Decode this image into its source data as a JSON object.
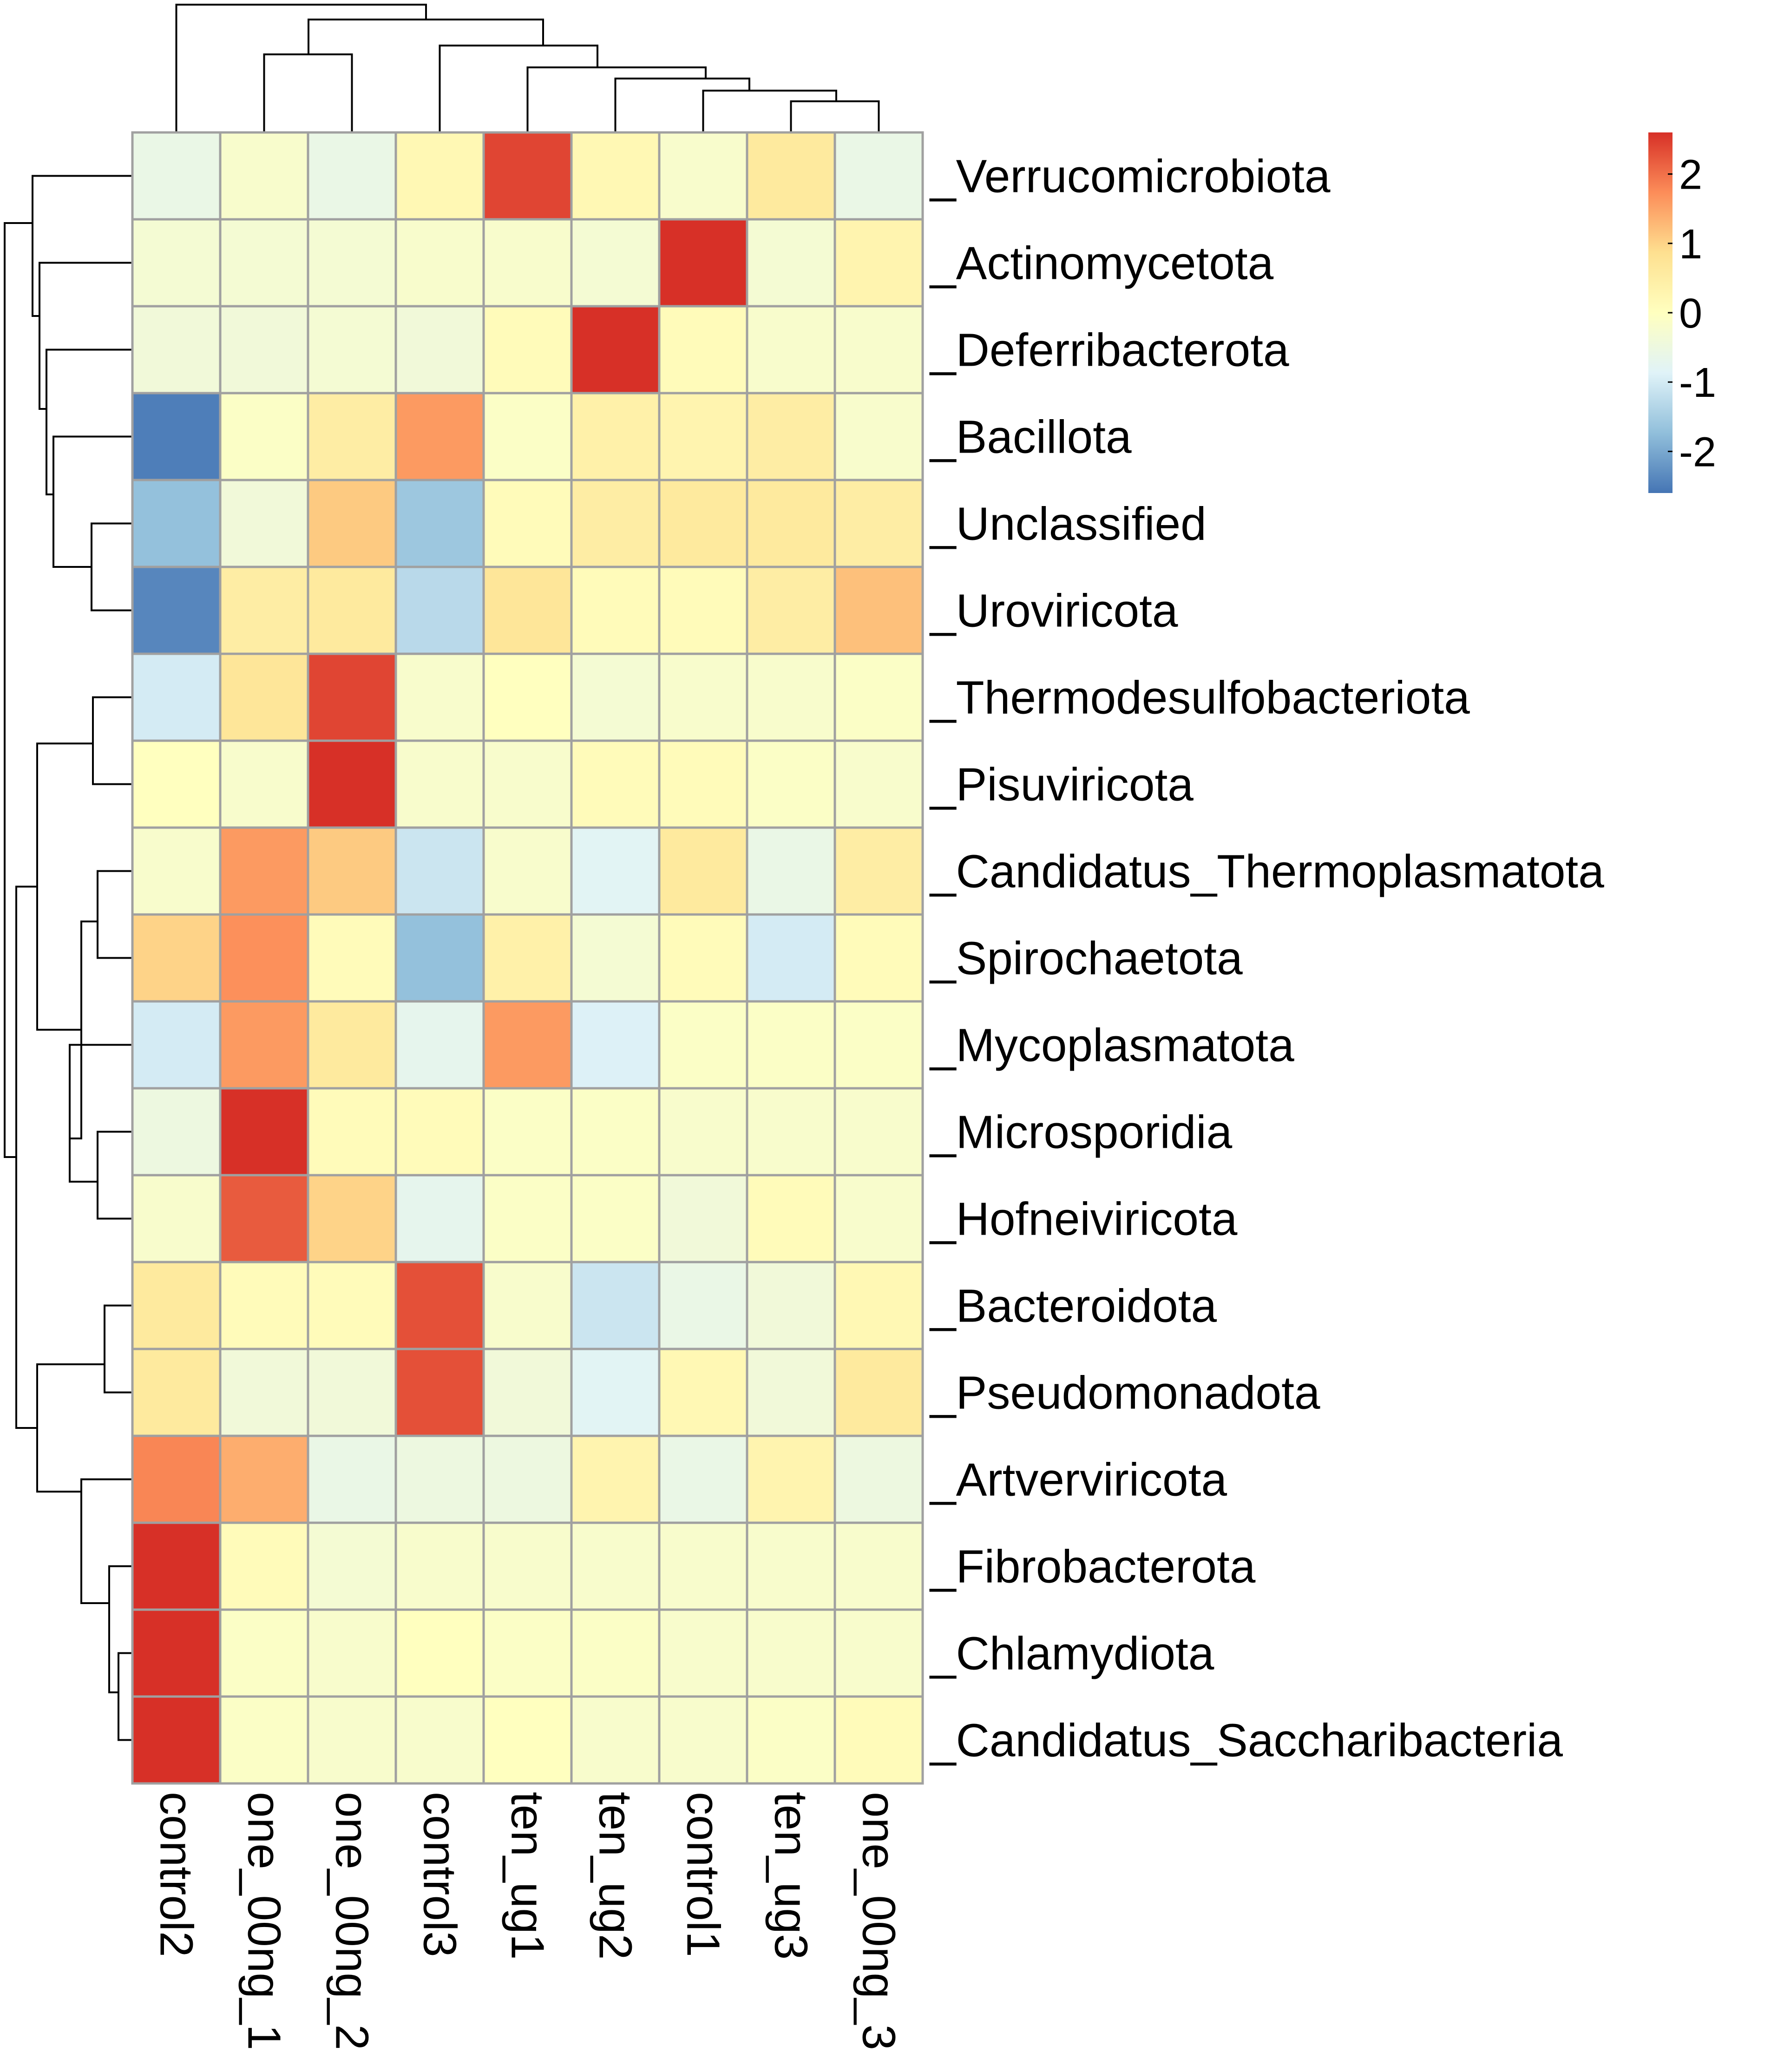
{
  "chart_data": {
    "type": "heatmap",
    "rows": [
      "_Verrucomicrobiota",
      "_Actinomycetota",
      "_Deferribacterota",
      "_Bacillota",
      "_Unclassified",
      "_Uroviricota",
      "_Thermodesulfobacteriota",
      "_Pisuviricota",
      "_Candidatus_Thermoplasmatota",
      "_Spirochaetota",
      "_Mycoplasmatota",
      "_Microsporidia",
      "_Hofneiviricota",
      "_Bacteroidota",
      "_Pseudomonadota",
      "_Artverviricota",
      "_Fibrobacterota",
      "_Chlamydiota",
      "_Candidatus_Saccharibacteria"
    ],
    "columns": [
      "control2",
      "one_00ng_1",
      "one_00ng_2",
      "control3",
      "ten_ug1",
      "ten_ug2",
      "control1",
      "ten_ug3",
      "one_00ng_3"
    ],
    "values": [
      [
        -0.6,
        -0.2,
        -0.6,
        0.2,
        2.4,
        0.2,
        -0.2,
        0.6,
        -0.6
      ],
      [
        -0.3,
        -0.3,
        -0.3,
        -0.2,
        -0.2,
        -0.3,
        2.6,
        -0.3,
        0.3
      ],
      [
        -0.4,
        -0.4,
        -0.3,
        -0.4,
        0.1,
        2.6,
        0.1,
        -0.2,
        -0.2
      ],
      [
        -2.5,
        -0.1,
        0.5,
        1.6,
        -0.1,
        0.4,
        0.3,
        0.5,
        -0.2
      ],
      [
        -1.7,
        -0.4,
        1.1,
        -1.6,
        0.1,
        0.5,
        0.6,
        0.6,
        0.5
      ],
      [
        -2.4,
        0.5,
        0.6,
        -1.3,
        0.7,
        0.1,
        0.1,
        0.5,
        1.2
      ],
      [
        -1.0,
        0.7,
        2.4,
        -0.2,
        0.0,
        -0.3,
        -0.2,
        -0.2,
        -0.1
      ],
      [
        0.0,
        -0.2,
        2.7,
        -0.2,
        -0.2,
        0.1,
        0.1,
        -0.1,
        -0.2
      ],
      [
        -0.2,
        1.6,
        1.1,
        -1.1,
        -0.2,
        -0.8,
        0.6,
        -0.6,
        0.5
      ],
      [
        1.0,
        1.7,
        0.1,
        -1.7,
        0.4,
        -0.3,
        0.1,
        -1.0,
        0.1
      ],
      [
        -1.0,
        1.6,
        0.6,
        -0.7,
        1.6,
        -0.9,
        -0.1,
        -0.1,
        -0.1
      ],
      [
        -0.5,
        2.6,
        0.1,
        0.1,
        -0.1,
        -0.1,
        -0.2,
        -0.2,
        -0.2
      ],
      [
        -0.2,
        2.2,
        1.0,
        -0.7,
        -0.1,
        -0.1,
        -0.4,
        0.1,
        -0.2
      ],
      [
        0.6,
        0.1,
        0.1,
        2.3,
        -0.2,
        -1.1,
        -0.6,
        -0.4,
        0.2
      ],
      [
        0.6,
        -0.4,
        -0.4,
        2.3,
        -0.4,
        -0.8,
        0.2,
        -0.4,
        0.6
      ],
      [
        1.8,
        1.4,
        -0.6,
        -0.5,
        -0.5,
        0.3,
        -0.6,
        0.3,
        -0.5
      ],
      [
        2.7,
        0.1,
        -0.3,
        -0.2,
        -0.2,
        -0.2,
        -0.2,
        -0.2,
        -0.2
      ],
      [
        2.7,
        -0.1,
        -0.2,
        0.0,
        -0.1,
        -0.1,
        -0.2,
        -0.2,
        -0.2
      ],
      [
        2.7,
        -0.1,
        -0.2,
        -0.2,
        0.0,
        -0.2,
        -0.2,
        -0.1,
        0.1
      ]
    ],
    "color_scale": {
      "min": -2.6,
      "max": 2.6,
      "low": "#4575b4",
      "mid": "#ffffbf",
      "high": "#d73027",
      "stops": [
        "#4575b4",
        "#91bfdb",
        "#e0f3f8",
        "#ffffbf",
        "#fee090",
        "#fc8d59",
        "#d73027"
      ]
    },
    "legend": {
      "ticks": [
        2,
        1,
        0,
        -1,
        -2
      ],
      "tick_labels": [
        "2",
        "1",
        "0",
        "-1",
        "-2"
      ],
      "placement": "top-right"
    },
    "row_dendrogram": true,
    "column_dendrogram": true,
    "title": "",
    "xlabel": "",
    "ylabel": ""
  }
}
